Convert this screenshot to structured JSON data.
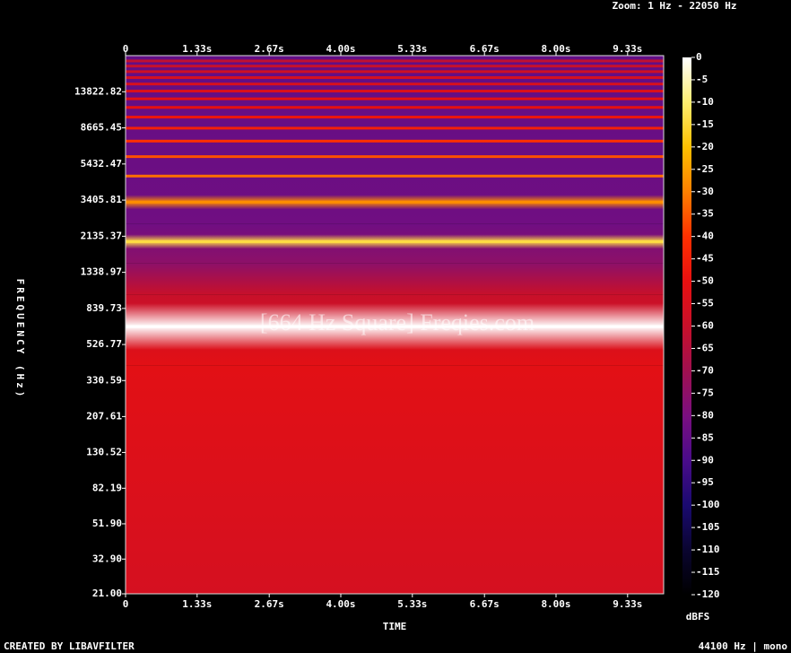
{
  "chart_data": {
    "type": "spectrogram",
    "title": "[664 Hz Square] Freqies.com",
    "header": "Zoom: 1 Hz - 22050 Hz",
    "footer_left": "CREATED BY LIBAVFILTER",
    "footer_right": "44100 Hz | mono",
    "x_label": "TIME",
    "y_label": "FREQUENCY (Hz)",
    "colorbar_label": "dBFS",
    "xlim": [
      0,
      10
    ],
    "xticks": [
      0,
      {
        "value": 1.33,
        "label": "1.33s"
      },
      {
        "value": 2.67,
        "label": "2.67s"
      },
      {
        "value": 4.0,
        "label": "4.00s"
      },
      {
        "value": 5.33,
        "label": "5.33s"
      },
      {
        "value": 6.67,
        "label": "6.67s"
      },
      {
        "value": 8.0,
        "label": "8.00s"
      },
      {
        "value": 9.33,
        "label": "9.33s"
      }
    ],
    "ylim": [
      21,
      22050
    ],
    "yscale": "log",
    "yticks": [
      {
        "value": 21,
        "label": "21.00"
      },
      {
        "value": 32.9,
        "label": "32.90"
      },
      {
        "value": 51.9,
        "label": "51.90"
      },
      82.19,
      130.52,
      207.61,
      330.59,
      526.77,
      839.73,
      1338.97,
      2135.37,
      3405.81,
      5432.47,
      8665.45,
      13822.82
    ],
    "clim": [
      -120,
      0
    ],
    "cticks": [
      0,
      -5,
      -10,
      -15,
      -20,
      -25,
      -30,
      -35,
      -40,
      -45,
      -50,
      -55,
      -60,
      -65,
      -70,
      -75,
      -80,
      -85,
      -90,
      -95,
      -100,
      -105,
      -110,
      -115,
      -120
    ],
    "colormap": {
      "level": [
        -120,
        -110,
        -100,
        -90,
        -80,
        -70,
        -60,
        -50,
        -40,
        -30,
        -20,
        -10,
        0
      ],
      "color": [
        "#000000",
        "#0a0530",
        "#1a0a70",
        "#4a0c8a",
        "#7a0f80",
        "#a0104f",
        "#c8102a",
        "#e81010",
        "#ff3000",
        "#ff8000",
        "#ffc000",
        "#ffee70",
        "#ffffff"
      ]
    },
    "floor": {
      "frequency": [
        21,
        400,
        1000,
        1500,
        2500,
        22050
      ],
      "level": [
        -56,
        -52,
        -60,
        -75,
        -82,
        -85
      ]
    },
    "harmonics": {
      "frequency": [
        664,
        1992,
        3320,
        4648,
        5976,
        7304,
        8632,
        9960,
        11288,
        12616,
        13944,
        15272,
        16600,
        17928,
        19256,
        20584
      ],
      "level": [
        0,
        -14,
        -28,
        -32,
        -36,
        -40,
        -45,
        -48,
        -50,
        -52,
        -54,
        -55,
        -56,
        -58,
        -60,
        -62
      ]
    }
  }
}
